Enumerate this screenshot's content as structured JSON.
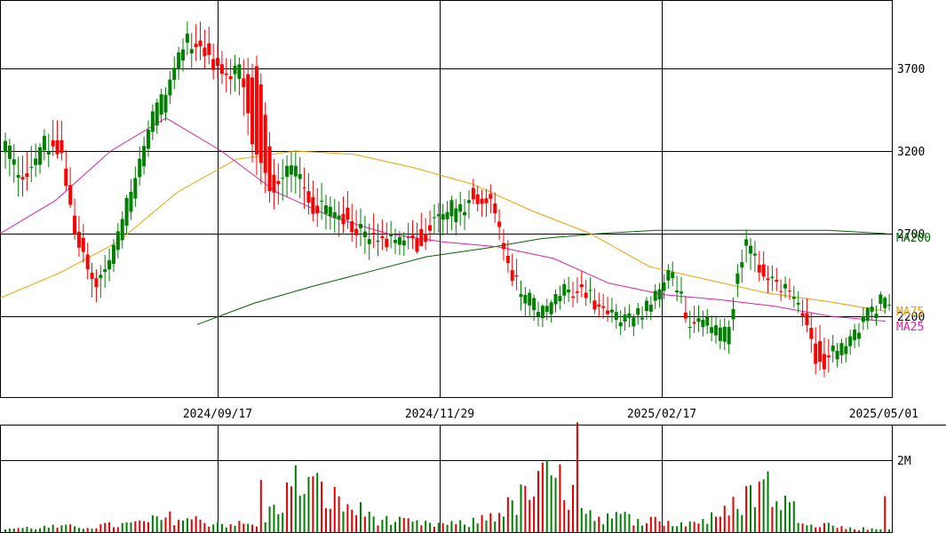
{
  "chart_data": [
    {
      "type": "candlestick",
      "x_ticks": [
        "2024/09/17",
        "2024/11/29",
        "2025/02/17",
        "2025/05/01"
      ],
      "y_ticks": [
        3700,
        3200,
        2700,
        2200
      ],
      "ylim": [
        1700,
        4100
      ],
      "grid": true,
      "moving_averages": [
        {
          "name": "MA200",
          "color": "#006400"
        },
        {
          "name": "MA75",
          "color": "#f0a000"
        },
        {
          "name": "MA25",
          "color": "#e020a0"
        }
      ],
      "ohlc_anchors": [
        [
          3180,
          3300,
          3080,
          3260
        ],
        [
          3020,
          3150,
          2900,
          2980
        ],
        [
          3150,
          3280,
          3100,
          3250
        ],
        [
          3300,
          3420,
          3180,
          3200
        ],
        [
          2750,
          2850,
          2600,
          2650
        ],
        [
          2400,
          2450,
          2250,
          2350
        ],
        [
          2500,
          2650,
          2450,
          2620
        ],
        [
          2850,
          3050,
          2800,
          3000
        ],
        [
          3250,
          3420,
          3200,
          3380
        ],
        [
          3500,
          3650,
          3450,
          3600
        ],
        [
          3820,
          3950,
          3750,
          3880
        ],
        [
          3850,
          3960,
          3720,
          3780
        ],
        [
          3720,
          3800,
          3600,
          3650
        ],
        [
          3650,
          3780,
          3550,
          3720
        ],
        [
          3700,
          3760,
          3000,
          3100
        ],
        [
          3000,
          3100,
          2850,
          2950
        ],
        [
          3050,
          3200,
          2950,
          3150
        ],
        [
          2950,
          3050,
          2800,
          2850
        ],
        [
          2780,
          2900,
          2700,
          2850
        ],
        [
          2850,
          2950,
          2720,
          2780
        ],
        [
          2650,
          2780,
          2550,
          2700
        ],
        [
          2700,
          2800,
          2620,
          2650
        ],
        [
          2640,
          2720,
          2580,
          2680
        ],
        [
          2700,
          2800,
          2600,
          2620
        ],
        [
          2800,
          2880,
          2700,
          2820
        ],
        [
          2760,
          2900,
          2680,
          2850
        ],
        [
          2950,
          3000,
          2850,
          2900
        ],
        [
          2920,
          2980,
          2800,
          2860
        ],
        [
          2500,
          2600,
          2400,
          2450
        ],
        [
          2250,
          2350,
          2180,
          2300
        ],
        [
          2200,
          2280,
          2150,
          2250
        ],
        [
          2300,
          2400,
          2250,
          2350
        ],
        [
          2400,
          2480,
          2320,
          2380
        ],
        [
          2280,
          2350,
          2200,
          2250
        ],
        [
          2150,
          2250,
          2100,
          2200
        ],
        [
          2180,
          2250,
          2120,
          2200
        ],
        [
          2250,
          2350,
          2200,
          2300
        ],
        [
          2450,
          2550,
          2400,
          2500
        ],
        [
          2150,
          2250,
          2080,
          2120
        ],
        [
          2100,
          2200,
          2050,
          2150
        ],
        [
          2000,
          2150,
          1950,
          2100
        ],
        [
          2600,
          2700,
          2500,
          2650
        ],
        [
          2500,
          2580,
          2400,
          2450
        ],
        [
          2380,
          2450,
          2320,
          2400
        ],
        [
          2300,
          2380,
          2250,
          2330
        ],
        [
          2050,
          2150,
          1850,
          1900
        ],
        [
          1950,
          2050,
          1900,
          2000
        ],
        [
          2050,
          2150,
          2000,
          2120
        ],
        [
          2200,
          2280,
          2150,
          2250
        ],
        [
          2280,
          2350,
          2250,
          2310
        ]
      ],
      "moving_average_values": {
        "MA200": [
          2150,
          2280,
          2380,
          2470,
          2560,
          2610,
          2670,
          2700,
          2720,
          2720,
          2720,
          2720,
          2700
        ],
        "MA75": [
          2310,
          2460,
          2650,
          2950,
          3150,
          3200,
          3180,
          3100,
          3000,
          2840,
          2700,
          2500,
          2420,
          2340,
          2290,
          2230
        ],
        "MA25": [
          2700,
          2900,
          3200,
          3400,
          3200,
          2950,
          2800,
          2700,
          2650,
          2620,
          2550,
          2400,
          2330,
          2300,
          2260,
          2200,
          2170
        ]
      }
    },
    {
      "type": "bar",
      "y_ticks": [
        "2M"
      ],
      "ylim": [
        0,
        3000000
      ],
      "volume_anchors": [
        110000,
        160000,
        180000,
        260000,
        480000,
        300000,
        220000,
        1700000,
        900000,
        380000,
        250000,
        260000,
        820000,
        1800000,
        520000,
        450000,
        250000,
        500000,
        1600000,
        400000,
        120000,
        100000
      ],
      "volume_peak": 3050000,
      "volume_peak_color": "#e00000"
    }
  ]
}
